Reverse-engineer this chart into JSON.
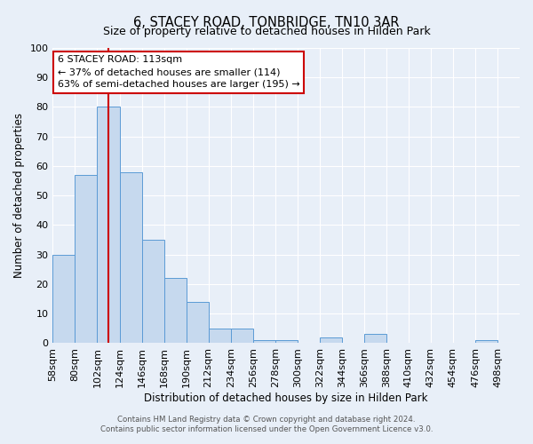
{
  "title": "6, STACEY ROAD, TONBRIDGE, TN10 3AR",
  "subtitle": "Size of property relative to detached houses in Hilden Park",
  "xlabel": "Distribution of detached houses by size in Hilden Park",
  "ylabel": "Number of detached properties",
  "bin_labels": [
    "58sqm",
    "80sqm",
    "102sqm",
    "124sqm",
    "146sqm",
    "168sqm",
    "190sqm",
    "212sqm",
    "234sqm",
    "256sqm",
    "278sqm",
    "300sqm",
    "322sqm",
    "344sqm",
    "366sqm",
    "388sqm",
    "410sqm",
    "432sqm",
    "454sqm",
    "476sqm",
    "498sqm"
  ],
  "bin_left_edges": [
    58,
    80,
    102,
    124,
    146,
    168,
    190,
    212,
    234,
    256,
    278,
    300,
    322,
    344,
    366,
    388,
    410,
    432,
    454,
    476,
    498
  ],
  "bin_width": 22,
  "bar_heights": [
    30,
    57,
    80,
    58,
    35,
    22,
    14,
    5,
    5,
    1,
    1,
    0,
    2,
    0,
    3,
    0,
    0,
    0,
    0,
    1,
    0
  ],
  "bar_color": "#c6d9ee",
  "bar_edge_color": "#5b9bd5",
  "bg_color": "#e8eff8",
  "grid_color": "#ffffff",
  "marker_x": 113,
  "marker_color": "#cc0000",
  "annotation_title": "6 STACEY ROAD: 113sqm",
  "annotation_line1": "← 37% of detached houses are smaller (114)",
  "annotation_line2": "63% of semi-detached houses are larger (195) →",
  "annotation_box_facecolor": "#ffffff",
  "annotation_box_edgecolor": "#cc0000",
  "ylim": [
    0,
    100
  ],
  "xlim_left": 58,
  "xlim_right": 520,
  "footer1": "Contains HM Land Registry data © Crown copyright and database right 2024.",
  "footer2": "Contains public sector information licensed under the Open Government Licence v3.0."
}
